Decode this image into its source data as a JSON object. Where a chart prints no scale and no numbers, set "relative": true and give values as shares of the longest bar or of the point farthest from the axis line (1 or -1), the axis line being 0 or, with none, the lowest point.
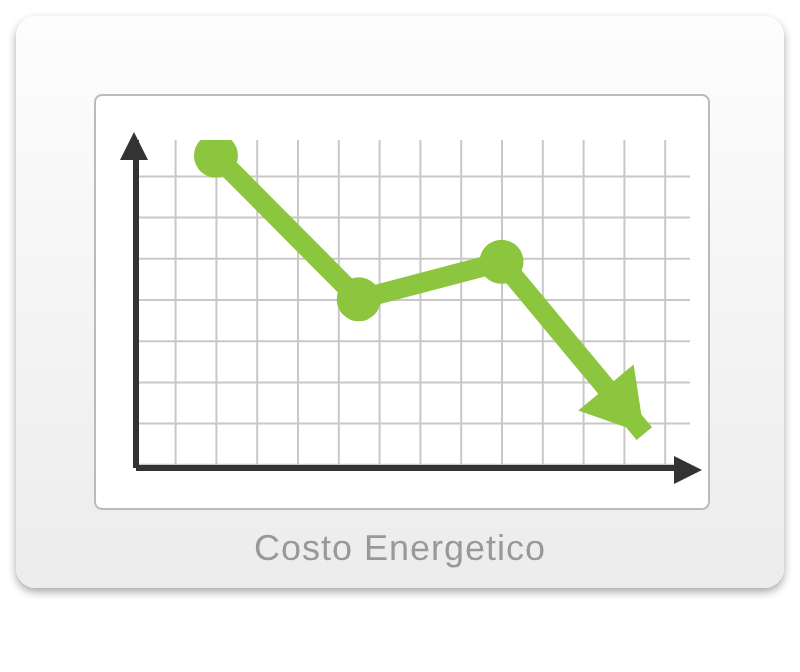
{
  "chart_data": {
    "type": "line",
    "title": "Costo Energetico",
    "relative": true,
    "categories": [
      null,
      null,
      null,
      null
    ],
    "series": [
      {
        "color": "#8cc63f",
        "values": [
          1,
          0.54,
          0.66,
          0.11
        ]
      }
    ],
    "grid": true,
    "marker": "circle",
    "line_style": "solid"
  }
}
